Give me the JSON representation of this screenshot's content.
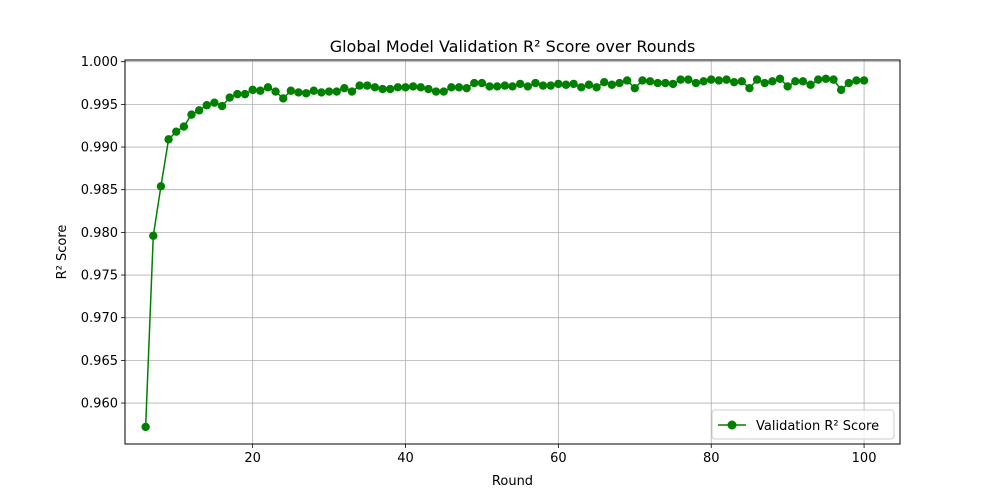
{
  "chart_data": {
    "type": "line",
    "title": "Global Model Validation R² Score over Rounds",
    "xlabel": "Round",
    "ylabel": "R² Score",
    "xlim": [
      3.3,
      104.7
    ],
    "ylim": [
      0.9552,
      1.0002
    ],
    "xticks": [
      20,
      40,
      60,
      80,
      100
    ],
    "xtick_labels": [
      "20",
      "40",
      "60",
      "80",
      "100"
    ],
    "yticks": [
      0.96,
      0.965,
      0.97,
      0.975,
      0.98,
      0.985,
      0.99,
      0.995,
      1.0
    ],
    "ytick_labels": [
      "0.960",
      "0.965",
      "0.970",
      "0.975",
      "0.980",
      "0.985",
      "0.990",
      "0.995",
      "1.000"
    ],
    "grid": true,
    "legend_position": "lower-right",
    "series": [
      {
        "name": "Validation R² Score",
        "color": "#008000",
        "marker": "circle",
        "x": [
          6,
          7,
          8,
          9,
          10,
          11,
          12,
          13,
          14,
          15,
          16,
          17,
          18,
          19,
          20,
          21,
          22,
          23,
          24,
          25,
          26,
          27,
          28,
          29,
          30,
          31,
          32,
          33,
          34,
          35,
          36,
          37,
          38,
          39,
          40,
          41,
          42,
          43,
          44,
          45,
          46,
          47,
          48,
          49,
          50,
          51,
          52,
          53,
          54,
          55,
          56,
          57,
          58,
          59,
          60,
          61,
          62,
          63,
          64,
          65,
          66,
          67,
          68,
          69,
          70,
          71,
          72,
          73,
          74,
          75,
          76,
          77,
          78,
          79,
          80,
          81,
          82,
          83,
          84,
          85,
          86,
          87,
          88,
          89,
          90,
          91,
          92,
          93,
          94,
          95,
          96,
          97,
          98,
          99,
          100
        ],
        "y": [
          0.9572,
          0.9796,
          0.9854,
          0.9909,
          0.9918,
          0.9924,
          0.9938,
          0.9943,
          0.9949,
          0.9952,
          0.9948,
          0.9958,
          0.9962,
          0.9962,
          0.9967,
          0.9966,
          0.997,
          0.9965,
          0.9957,
          0.9966,
          0.9964,
          0.9963,
          0.9966,
          0.9964,
          0.9965,
          0.9965,
          0.9969,
          0.9965,
          0.9972,
          0.9972,
          0.997,
          0.9968,
          0.9968,
          0.997,
          0.997,
          0.9971,
          0.997,
          0.9968,
          0.9965,
          0.9965,
          0.997,
          0.997,
          0.9969,
          0.9975,
          0.9975,
          0.9971,
          0.9971,
          0.9972,
          0.9971,
          0.9974,
          0.9971,
          0.9975,
          0.9972,
          0.9972,
          0.9974,
          0.9973,
          0.9974,
          0.997,
          0.9973,
          0.997,
          0.9976,
          0.9973,
          0.9975,
          0.9978,
          0.9969,
          0.9978,
          0.9977,
          0.9975,
          0.9975,
          0.9974,
          0.9979,
          0.9979,
          0.9975,
          0.9977,
          0.9979,
          0.9978,
          0.9979,
          0.9976,
          0.9977,
          0.9969,
          0.9979,
          0.9975,
          0.9977,
          0.998,
          0.9971,
          0.9977,
          0.9977,
          0.9973,
          0.9979,
          0.998,
          0.9979,
          0.9967,
          0.9975,
          0.9978,
          0.9978
        ]
      }
    ]
  }
}
